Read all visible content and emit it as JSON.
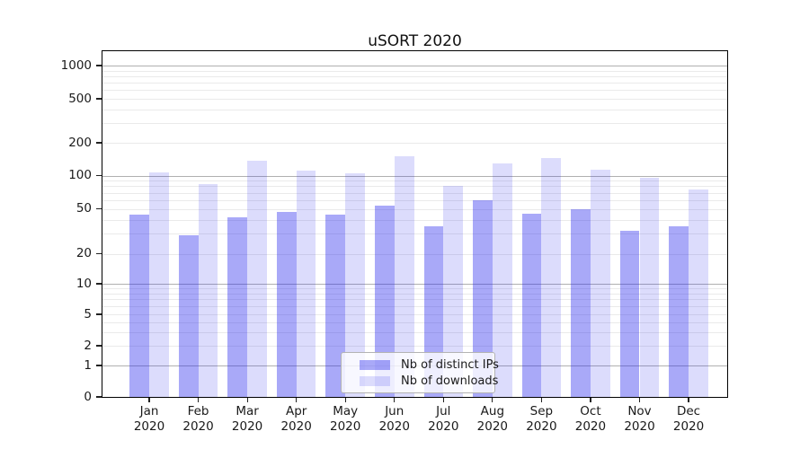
{
  "chart_data": {
    "type": "bar",
    "title": "uSORT 2020",
    "categories": [
      "Jan",
      "Feb",
      "Mar",
      "Apr",
      "May",
      "Jun",
      "Jul",
      "Aug",
      "Sep",
      "Oct",
      "Nov",
      "Dec"
    ],
    "category_year": "2020",
    "series": [
      {
        "name": "Nb of distinct IPs",
        "color": "rgba(40,40,238,0.40)",
        "values": [
          44,
          29,
          42,
          47,
          44,
          53,
          35,
          60,
          45,
          50,
          32,
          35
        ]
      },
      {
        "name": "Nb of downloads",
        "color": "rgba(40,40,238,0.16)",
        "values": [
          106,
          83,
          137,
          110,
          104,
          150,
          81,
          130,
          145,
          113,
          95,
          75
        ]
      }
    ],
    "yscale": "symlog",
    "yticks": [
      0,
      1,
      2,
      5,
      10,
      20,
      50,
      100,
      200,
      500,
      1000
    ],
    "ylim": [
      0,
      1300
    ],
    "grid": true,
    "legend_position": "lower center inside plot",
    "colors": {
      "major_grid": "#b0b0b0",
      "minor_grid": "#eaeaea",
      "axis": "#000000",
      "text": "#1a1a1a"
    }
  }
}
